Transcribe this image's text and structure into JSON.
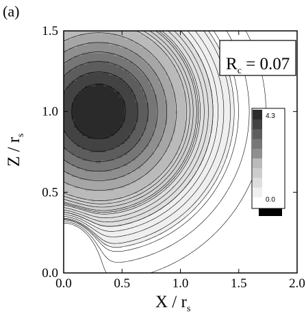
{
  "figure": {
    "panel_label": "(a)"
  },
  "chart_data": {
    "type": "heatmap",
    "subtype": "filled contour",
    "xlabel": {
      "main": "X / r",
      "sub": "s"
    },
    "ylabel": {
      "main": "Z / r",
      "sub": "s"
    },
    "xlim": [
      0.0,
      2.0
    ],
    "ylim": [
      0.0,
      1.5
    ],
    "x_ticks": [
      "0.0",
      "0.5",
      "1.0",
      "1.5",
      "2.0"
    ],
    "y_ticks": [
      "0.0",
      "0.5",
      "1.0",
      "1.5"
    ],
    "annotation": {
      "main": "R",
      "sub": "c",
      "rest": " = 0.07"
    },
    "colorbar": {
      "max_label": "4.3",
      "min_label": "0.0",
      "range": [
        0.0,
        4.3
      ],
      "levels": 10
    },
    "peak": {
      "x": 0.3,
      "y": 1.0,
      "value": 4.3
    },
    "colors": {
      "levels": [
        "#ffffff",
        "#efefef",
        "#dedede",
        "#cdcdcd",
        "#bababa",
        "#a6a6a6",
        "#8f8f8f",
        "#767676",
        "#5d5d5d",
        "#434343",
        "#2a2a2a"
      ],
      "contour_line": "#000000"
    }
  }
}
